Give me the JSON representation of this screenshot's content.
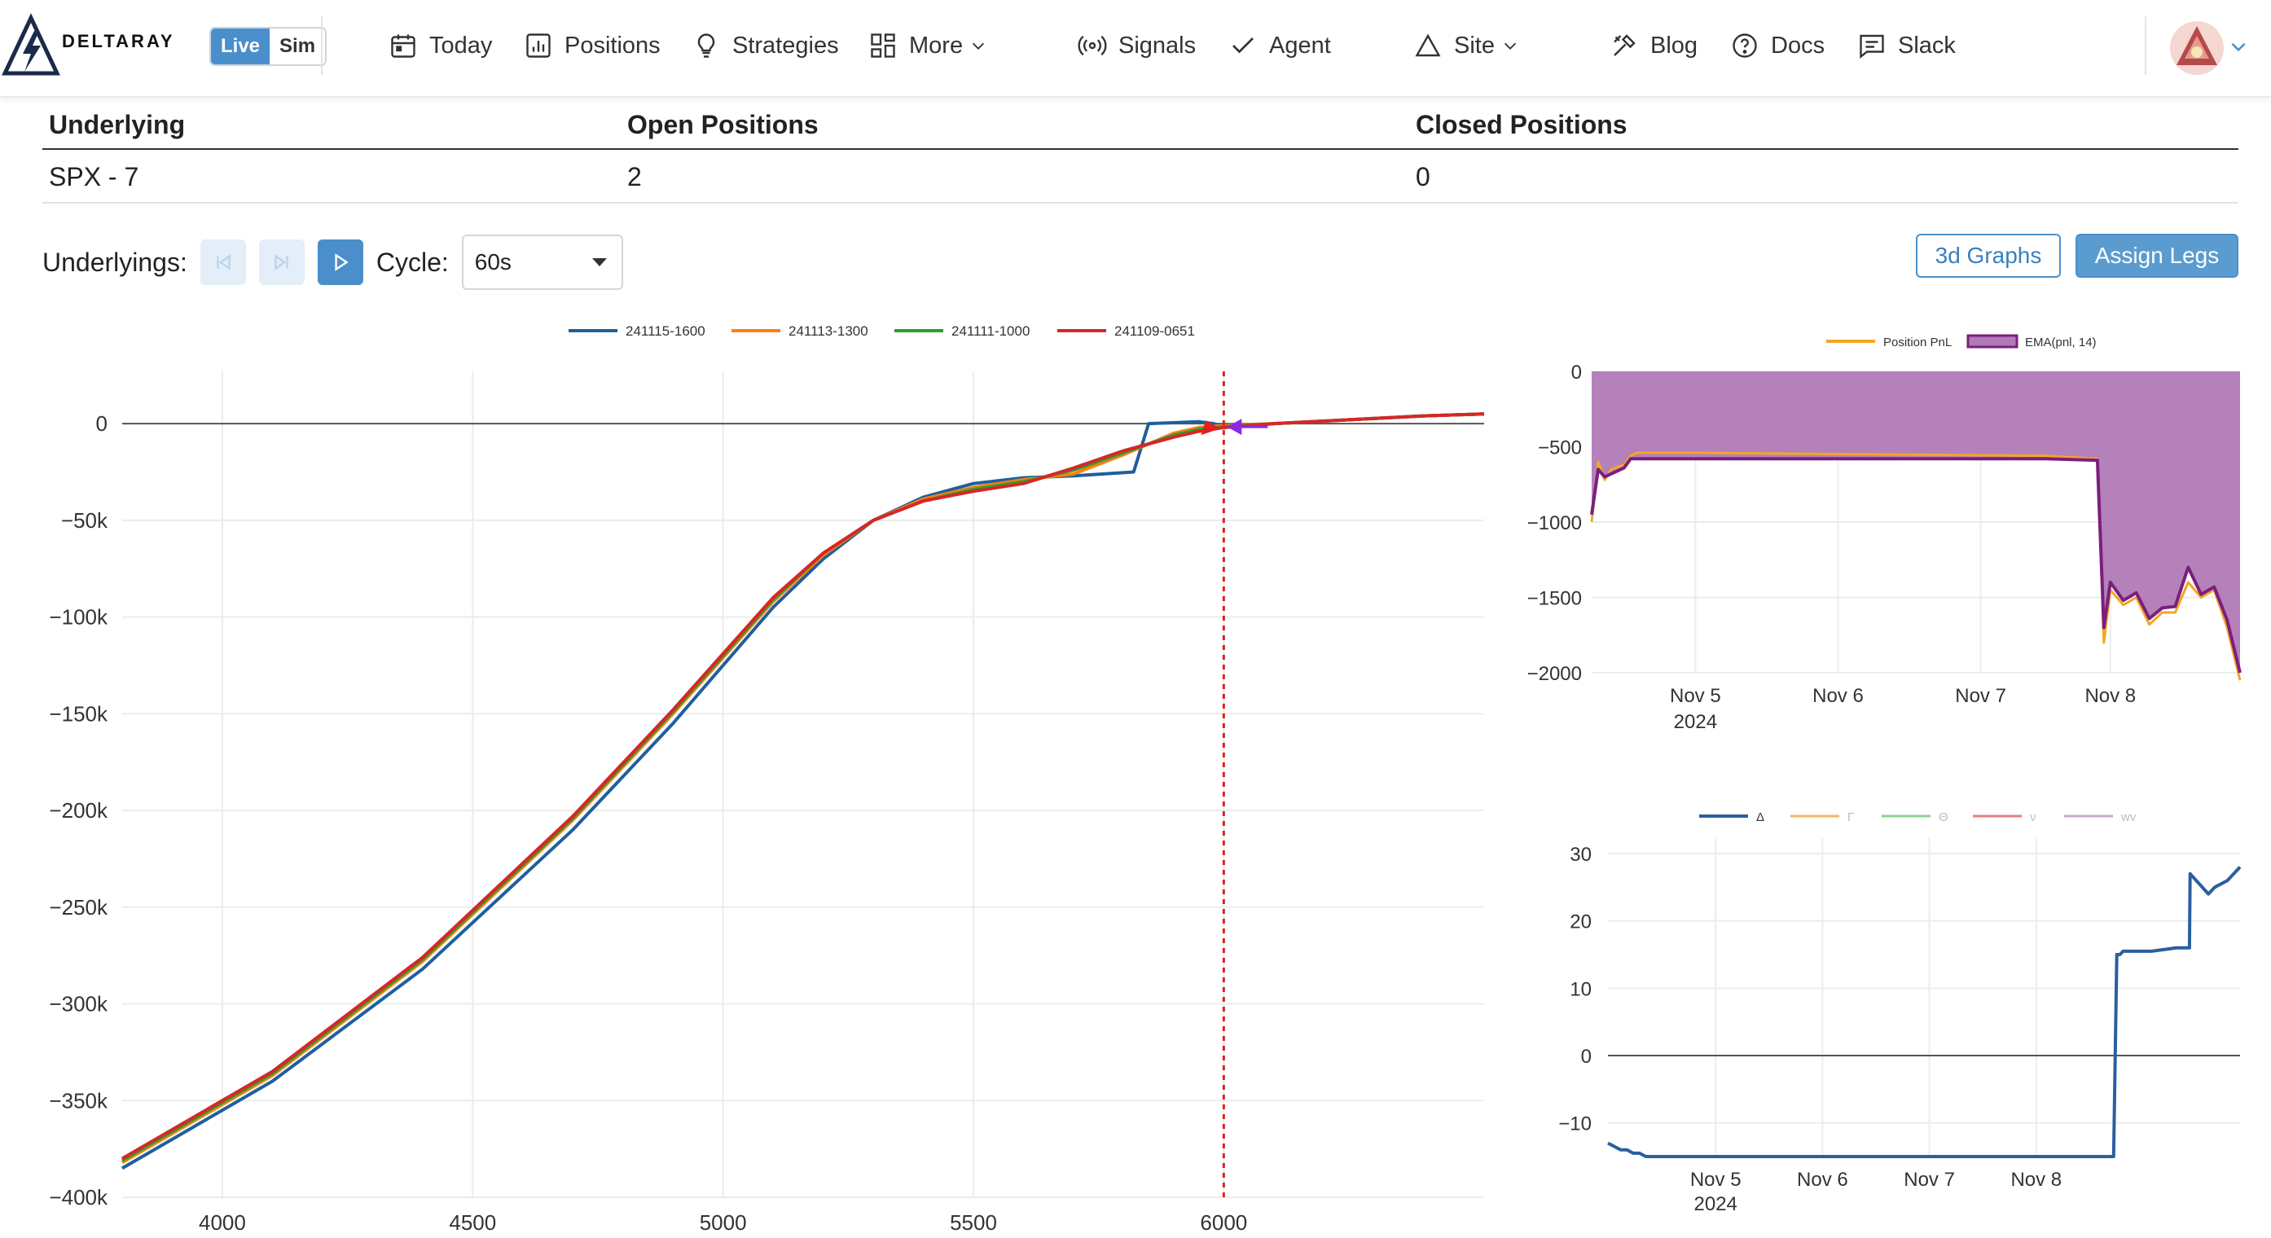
{
  "nav": {
    "brand": "DELTARAY",
    "live": "Live",
    "sim": "Sim",
    "items": [
      {
        "label": "Today",
        "icon": "calendar-icon"
      },
      {
        "label": "Positions",
        "icon": "bar-chart-icon"
      },
      {
        "label": "Strategies",
        "icon": "lightbulb-icon"
      },
      {
        "label": "More",
        "icon": "grid-icon"
      },
      {
        "label": "Signals",
        "icon": "broadcast-icon"
      },
      {
        "label": "Agent",
        "icon": "check-icon"
      },
      {
        "label": "Site",
        "icon": "triangle-icon"
      },
      {
        "label": "Blog",
        "icon": "tools-icon"
      },
      {
        "label": "Docs",
        "icon": "help-circle-icon"
      },
      {
        "label": "Slack",
        "icon": "chat-icon"
      }
    ]
  },
  "summary": {
    "headers": [
      "Underlying",
      "Open Positions",
      "Closed Positions"
    ],
    "rows": [
      [
        "SPX - 7",
        "2",
        "0"
      ]
    ]
  },
  "controls": {
    "underlyings_label": "Underlyings:",
    "cycle_label": "Cycle:",
    "cycle_value": "60s"
  },
  "buttons": {
    "graphs3d": "3d Graphs",
    "assign_legs": "Assign Legs"
  },
  "chart_data": [
    {
      "type": "line",
      "legend": [
        "241115-1600",
        "241113-1300",
        "241111-1000",
        "241109-0651"
      ],
      "colors": [
        "#1f5f9e",
        "#ff7f0e",
        "#2ca02c",
        "#d62728"
      ],
      "xlim": [
        3800,
        6520
      ],
      "ylim": [
        -400000,
        27000
      ],
      "xticks": [
        4000,
        4500,
        5000,
        5500,
        6000
      ],
      "yticks": [
        0,
        -50000,
        -100000,
        -150000,
        -200000,
        -250000,
        -300000,
        -350000,
        -400000
      ],
      "ytick_labels": [
        "0",
        "−50k",
        "−100k",
        "−150k",
        "−200k",
        "−250k",
        "−300k",
        "−350k",
        "−400k"
      ],
      "current_price": 6000,
      "series": [
        {
          "name": "241115-1600",
          "x": [
            3800,
            4100,
            4400,
            4700,
            4900,
            5100,
            5200,
            5300,
            5400,
            5500,
            5600,
            5700,
            5820,
            5850,
            5950,
            5980,
            6000,
            6100,
            6250,
            6400,
            6520
          ],
          "y": [
            -385000,
            -340000,
            -282000,
            -210000,
            -155000,
            -95000,
            -70000,
            -50000,
            -38000,
            -31000,
            -28000,
            -27000,
            -25000,
            0,
            1000,
            0,
            -2000,
            0,
            2000,
            4000,
            5000
          ]
        },
        {
          "name": "241113-1300",
          "x": [
            3800,
            4100,
            4400,
            4700,
            4900,
            5100,
            5200,
            5300,
            5400,
            5500,
            5600,
            5700,
            5800,
            5900,
            5950,
            6000,
            6100,
            6250,
            6400,
            6520
          ],
          "y": [
            -382000,
            -337000,
            -278000,
            -205000,
            -150000,
            -92000,
            -68000,
            -50000,
            -39000,
            -33000,
            -29000,
            -26000,
            -16000,
            -5000,
            -2000,
            -1000,
            0,
            2000,
            4000,
            5000
          ]
        },
        {
          "name": "241111-1000",
          "x": [
            3800,
            4100,
            4400,
            4700,
            4900,
            5100,
            5200,
            5300,
            5400,
            5500,
            5600,
            5700,
            5800,
            5900,
            5950,
            6000,
            6100,
            6250,
            6400,
            6520
          ],
          "y": [
            -381000,
            -336000,
            -277000,
            -204000,
            -149000,
            -91000,
            -67000,
            -50000,
            -40000,
            -34000,
            -30000,
            -24000,
            -15000,
            -6000,
            -3000,
            -1500,
            0,
            2000,
            4000,
            5000
          ]
        },
        {
          "name": "241109-0651",
          "x": [
            3800,
            4100,
            4400,
            4700,
            4900,
            5100,
            5200,
            5300,
            5400,
            5500,
            5600,
            5700,
            5800,
            5900,
            5950,
            6000,
            6100,
            6250,
            6400,
            6520
          ],
          "y": [
            -380000,
            -335000,
            -276000,
            -203000,
            -148000,
            -90000,
            -67000,
            -50000,
            -40000,
            -35000,
            -31000,
            -23000,
            -14000,
            -7000,
            -4000,
            -2000,
            0,
            2000,
            4000,
            5000
          ]
        }
      ]
    },
    {
      "type": "area",
      "legend": [
        "Position PnL",
        "EMA(pnl, 14)"
      ],
      "colors": [
        "#f5a623",
        "#7b1f7e"
      ],
      "fill": "#b07ab6",
      "ylim": [
        -2000,
        0
      ],
      "yticks": [
        0,
        -500,
        -1000,
        -1500,
        -2000
      ],
      "ytick_labels": [
        "0",
        "−500",
        "−1000",
        "−1500",
        "−2000"
      ],
      "xtick_labels": [
        "Nov 5",
        "Nov 6",
        "Nov 7",
        "Nov 8"
      ],
      "xtick_sublabel": "2024",
      "series": [
        {
          "name": "Position PnL",
          "t": [
            0,
            0.01,
            0.02,
            0.03,
            0.05,
            0.06,
            0.07,
            0.1,
            0.12,
            0.15,
            0.7,
            0.78,
            0.79,
            0.8,
            0.82,
            0.84,
            0.86,
            0.88,
            0.9,
            0.92,
            0.94,
            0.96,
            0.98,
            1.0
          ],
          "y": [
            -1000,
            -600,
            -720,
            -650,
            -620,
            -560,
            -540,
            -540,
            -540,
            -540,
            -560,
            -580,
            -1800,
            -1450,
            -1550,
            -1500,
            -1680,
            -1600,
            -1600,
            -1400,
            -1500,
            -1450,
            -1700,
            -2050
          ]
        },
        {
          "name": "EMA(pnl, 14)",
          "t": [
            0,
            0.01,
            0.02,
            0.03,
            0.05,
            0.06,
            0.07,
            0.1,
            0.12,
            0.15,
            0.7,
            0.78,
            0.79,
            0.8,
            0.82,
            0.84,
            0.86,
            0.88,
            0.9,
            0.92,
            0.94,
            0.96,
            0.98,
            1.0
          ],
          "y": [
            -950,
            -650,
            -700,
            -680,
            -640,
            -580,
            -580,
            -580,
            -580,
            -580,
            -580,
            -590,
            -1700,
            -1400,
            -1520,
            -1470,
            -1640,
            -1570,
            -1560,
            -1300,
            -1480,
            -1430,
            -1650,
            -2000
          ]
        }
      ]
    },
    {
      "type": "line",
      "legend": [
        "Δ",
        "Γ",
        "Θ",
        "ν",
        "wv"
      ],
      "colors": [
        "#2a5fa0",
        "#f5b36a",
        "#8fd18f",
        "#ea7c7c",
        "#c8a8d8"
      ],
      "ylim": [
        -15,
        30
      ],
      "yticks": [
        30,
        20,
        10,
        0,
        -10
      ],
      "ytick_labels": [
        "30",
        "20",
        "10",
        "0",
        "−10"
      ],
      "xtick_labels": [
        "Nov 5",
        "Nov 6",
        "Nov 7",
        "Nov 8"
      ],
      "xtick_sublabel": "2024",
      "series": [
        {
          "name": "Δ",
          "t": [
            0,
            0.01,
            0.02,
            0.03,
            0.04,
            0.05,
            0.06,
            0.07,
            0.1,
            0.8,
            0.805,
            0.81,
            0.815,
            0.83,
            0.86,
            0.9,
            0.92,
            0.921,
            0.95,
            0.96,
            0.98,
            1.0
          ],
          "y": [
            -13,
            -13.5,
            -14,
            -14,
            -14.5,
            -14.5,
            -15,
            -15,
            -15,
            -15,
            15,
            15,
            15.5,
            15.5,
            15.5,
            16,
            16,
            27,
            24,
            25,
            26,
            28
          ]
        }
      ]
    }
  ]
}
